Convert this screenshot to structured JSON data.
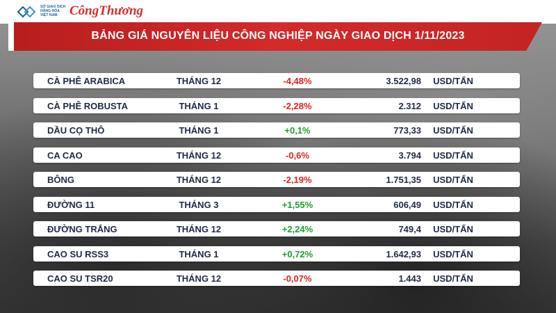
{
  "header": {
    "logo_text": "SỞ GIAO DỊCH HÀNG HÓA VIỆT NAM",
    "brand": "CôngThương",
    "title": "BẢNG GIÁ NGUYÊN LIỆU CÔNG NGHIỆP NGÀY GIAO DỊCH 1/11/2023"
  },
  "colors": {
    "negative": "#e02020",
    "positive": "#1f9d2e",
    "accent": "#c42424"
  },
  "rows": [
    {
      "name": "CÀ PHÊ ARABICA",
      "month": "THÁNG 12",
      "change": "-4,48%",
      "price": "3.522,98",
      "unit": "USD/TẤN"
    },
    {
      "name": "CÀ PHÊ ROBUSTA",
      "month": "THÁNG 1",
      "change": "-2,28%",
      "price": "2.312",
      "unit": "USD/TẤN"
    },
    {
      "name": "DẦU CỌ THÔ",
      "month": "THÁNG 1",
      "change": "+0,1%",
      "price": "773,33",
      "unit": "USD/TẤN"
    },
    {
      "name": "CA CAO",
      "month": "THÁNG 12",
      "change": "-0,6%",
      "price": "3.794",
      "unit": "USD/TẤN"
    },
    {
      "name": "BÔNG",
      "month": "THÁNG 12",
      "change": "-2,19%",
      "price": "1.751,35",
      "unit": "USD/TẤN"
    },
    {
      "name": "ĐƯỜNG 11",
      "month": "THÁNG 3",
      "change": "+1,55%",
      "price": "606,49",
      "unit": "USD/TẤN"
    },
    {
      "name": "ĐƯỜNG TRẮNG",
      "month": "THÁNG 12",
      "change": "+2,24%",
      "price": "749,4",
      "unit": "USD/TẤN"
    },
    {
      "name": "CAO SU RSS3",
      "month": "THÁNG 1",
      "change": "+0,72%",
      "price": "1.642,93",
      "unit": "USD/TẤN"
    },
    {
      "name": "CAO SU TSR20",
      "month": "THÁNG 12",
      "change": "-0,07%",
      "price": "1.443",
      "unit": "USD/TẤN"
    }
  ]
}
